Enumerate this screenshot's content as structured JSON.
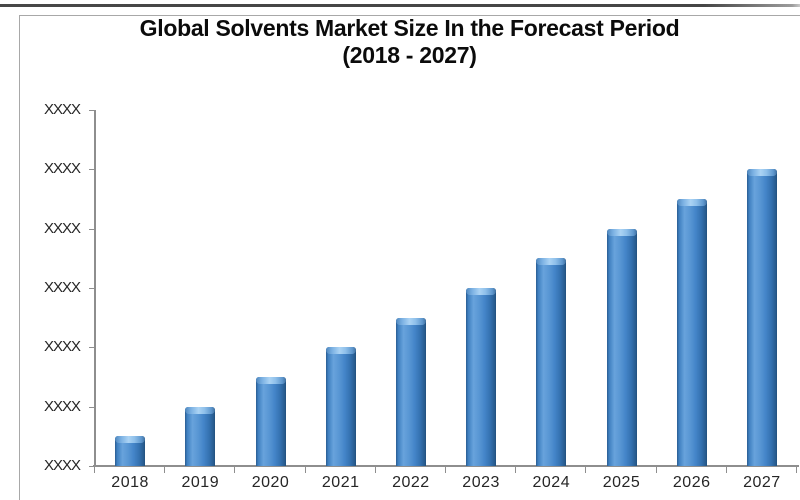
{
  "page": {
    "background": "#ffffff",
    "top_strip_color": "#474747",
    "frame_border_color": "#a8a8a8"
  },
  "title": {
    "line1": "Global Solvents Market Size In the Forecast Period",
    "line2": "(2018 - 2027)"
  },
  "chart_data": {
    "type": "bar",
    "title": "Global Solvents Market Size In the Forecast Period (2018 - 2027)",
    "categories": [
      "2018",
      "2019",
      "2020",
      "2021",
      "2022",
      "2023",
      "2024",
      "2025",
      "2026",
      "2027"
    ],
    "values_relative": [
      0.5,
      1.0,
      1.5,
      2.0,
      2.5,
      3.0,
      3.5,
      4.0,
      4.5,
      5.0
    ],
    "y_tick_labels": [
      "XXXX",
      "XXXX",
      "XXXX",
      "XXXX",
      "XXXX",
      "XXXX",
      "XXXX"
    ],
    "xlabel": "",
    "ylabel": "",
    "ylim": [
      0,
      6
    ],
    "grid": false,
    "legend": false,
    "bar_color": "#3b7dc3",
    "bar_highlight_color": "#abd3f4",
    "bar_edge_color": "#27588a",
    "axis_color": "#8e8e8e",
    "label_color": "#262626"
  }
}
